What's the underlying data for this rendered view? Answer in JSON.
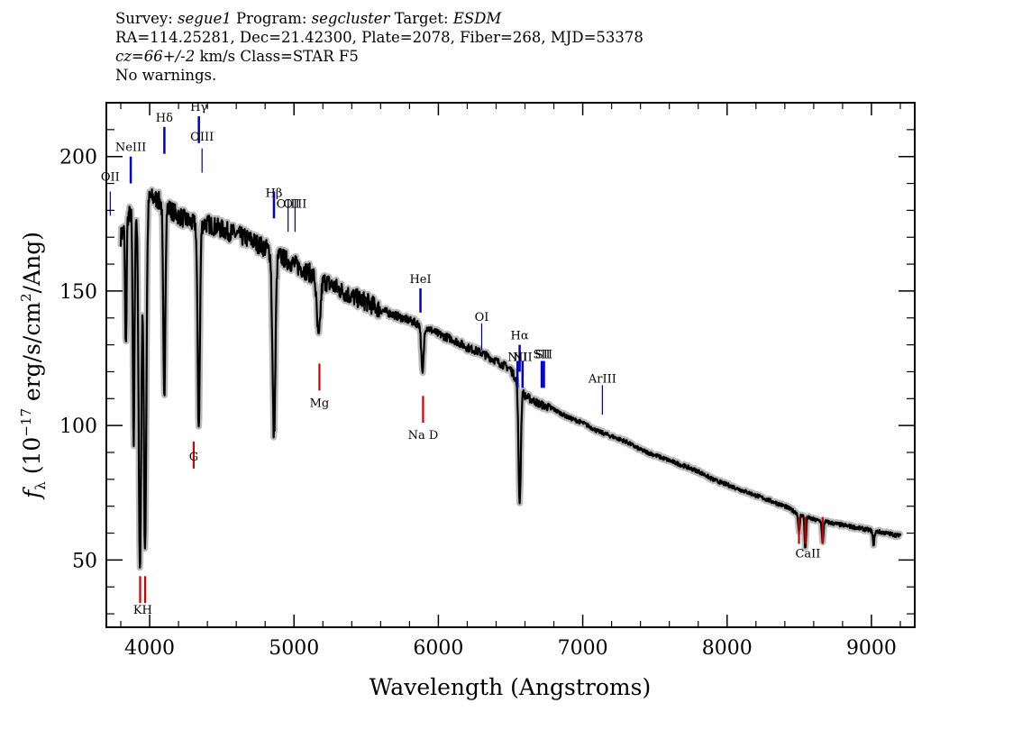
{
  "header": {
    "survey_label": "Survey:",
    "survey": "segue1",
    "program_label": "Program:",
    "program": "segcluster",
    "target_label": "Target:",
    "target": "ESDM",
    "line2": "RA=114.25281, Dec=21.42300, Plate=2078, Fiber=268, MJD=53378",
    "cz": "cz=66+/-2",
    "cz_rest": " km/s Class=STAR F5",
    "line4": "No warnings."
  },
  "chart_data": {
    "type": "line",
    "xlabel": "Wavelength (Angstroms)",
    "ylabel_prefix": "f",
    "ylabel_sub": "λ",
    "ylabel_main": " (10",
    "ylabel_exp": "−17",
    "ylabel_mid": " erg/s/cm",
    "ylabel_exp2": "2",
    "ylabel_end": "/Ang)",
    "xlim": [
      3700,
      9300
    ],
    "ylim": [
      25,
      220
    ],
    "x_ticks": [
      4000,
      5000,
      6000,
      7000,
      8000,
      9000
    ],
    "x_tick_labels": [
      "4000",
      "5000",
      "6000",
      "7000",
      "8000",
      "9000"
    ],
    "y_ticks": [
      50,
      100,
      150,
      200
    ],
    "y_tick_labels": [
      "50",
      "100",
      "150",
      "200"
    ],
    "colors": {
      "spectrum": "#000000",
      "error": "#bbbbbb",
      "emission": "#0000cc",
      "absorption": "#cc0000"
    },
    "continuum": [
      [
        3800,
        170
      ],
      [
        3850,
        178
      ],
      [
        3900,
        180
      ],
      [
        3950,
        182
      ],
      [
        4000,
        185
      ],
      [
        4050,
        184
      ],
      [
        4100,
        182
      ],
      [
        4200,
        178
      ],
      [
        4300,
        175
      ],
      [
        4400,
        175
      ],
      [
        4500,
        173
      ],
      [
        4600,
        171
      ],
      [
        4700,
        169
      ],
      [
        4800,
        166
      ],
      [
        4900,
        163
      ],
      [
        5000,
        160
      ],
      [
        5100,
        157
      ],
      [
        5200,
        154
      ],
      [
        5300,
        151
      ],
      [
        5400,
        148
      ],
      [
        5500,
        146
      ],
      [
        5600,
        143
      ],
      [
        5700,
        141
      ],
      [
        5800,
        139
      ],
      [
        5900,
        137
      ],
      [
        6000,
        134
      ],
      [
        6100,
        132
      ],
      [
        6200,
        129
      ],
      [
        6300,
        127
      ],
      [
        6400,
        124
      ],
      [
        6500,
        121
      ],
      [
        6600,
        111
      ],
      [
        6700,
        108
      ],
      [
        6800,
        106
      ],
      [
        6900,
        103
      ],
      [
        7000,
        101
      ],
      [
        7100,
        98
      ],
      [
        7200,
        96
      ],
      [
        7300,
        94
      ],
      [
        7400,
        91
      ],
      [
        7500,
        89
      ],
      [
        7600,
        87
      ],
      [
        7700,
        85
      ],
      [
        7800,
        83
      ],
      [
        7900,
        80
      ],
      [
        8000,
        78
      ],
      [
        8100,
        76
      ],
      [
        8200,
        74
      ],
      [
        8300,
        72
      ],
      [
        8400,
        70
      ],
      [
        8500,
        67
      ],
      [
        8600,
        65
      ],
      [
        8700,
        64
      ],
      [
        8800,
        63
      ],
      [
        8900,
        62
      ],
      [
        9000,
        61
      ],
      [
        9100,
        60
      ],
      [
        9200,
        59
      ]
    ],
    "absorption_features": [
      [
        3835,
        128,
        5
      ],
      [
        3889,
        92,
        6
      ],
      [
        3933,
        46,
        9
      ],
      [
        3968,
        55,
        9
      ],
      [
        4101,
        110,
        7
      ],
      [
        4340,
        100,
        8
      ],
      [
        4861,
        96,
        10
      ],
      [
        5170,
        132,
        12
      ],
      [
        5890,
        119,
        8
      ],
      [
        6563,
        72,
        8
      ],
      [
        8498,
        60,
        5
      ],
      [
        8542,
        54,
        5
      ],
      [
        8662,
        56,
        5
      ],
      [
        9015,
        56,
        6
      ]
    ],
    "emission_lines": [
      {
        "name": "OII",
        "x": 3727,
        "label_y": 191,
        "y0": 187,
        "y1": 178
      },
      {
        "name": "NeIII",
        "x": 3869,
        "label_y": 202,
        "y0": 200,
        "y1": 190
      },
      {
        "name": "Hδ",
        "x": 4102,
        "label_y": 213,
        "y0": 211,
        "y1": 201
      },
      {
        "name": "Hγ",
        "x": 4341,
        "label_y": 217,
        "y0": 215,
        "y1": 205
      },
      {
        "name": "OIII",
        "x": 4363,
        "label_y": 206,
        "y0": 203,
        "y1": 194
      },
      {
        "name": "Hβ",
        "x": 4861,
        "label_y": 185,
        "y0": 187,
        "y1": 177
      },
      {
        "name": "OIII",
        "x": 4959,
        "label_y": 181,
        "y0": 182,
        "y1": 172
      },
      {
        "name": "OIII",
        "x": 5007,
        "label_y": 181,
        "y0": 182,
        "y1": 172
      },
      {
        "name": "HeI",
        "x": 5876,
        "label_y": 153,
        "y0": 151,
        "y1": 142
      },
      {
        "name": "OI",
        "x": 6300,
        "label_y": 139,
        "y0": 138,
        "y1": 128
      },
      {
        "name": "NII",
        "x": 6548,
        "label_y": 124,
        "y0": 124,
        "y1": 114
      },
      {
        "name": "Hα",
        "x": 6563,
        "label_y": 132,
        "y0": 130,
        "y1": 120
      },
      {
        "name": "NII",
        "x": 6583,
        "label_y": 124,
        "y0": 124,
        "y1": 114
      },
      {
        "name": "SII",
        "x": 6716,
        "label_y": 125,
        "y0": 124,
        "y1": 114
      },
      {
        "name": "SII",
        "x": 6731,
        "label_y": 125,
        "y0": 124,
        "y1": 114
      },
      {
        "name": "ArIII",
        "x": 7136,
        "label_y": 116,
        "y0": 115,
        "y1": 104
      }
    ],
    "absorption_lines": [
      {
        "name": "K",
        "x": 3934,
        "label_y": 30,
        "y0": 44,
        "y1": 34
      },
      {
        "name": "H",
        "x": 3969,
        "label_y": 30,
        "y0": 44,
        "y1": 34
      },
      {
        "name": "G",
        "x": 4305,
        "label_y": 87,
        "y0": 94,
        "y1": 84
      },
      {
        "name": "Mg",
        "x": 5176,
        "label_y": 107,
        "y0": 123,
        "y1": 113
      },
      {
        "name": "Na D",
        "x": 5894,
        "label_y": 95,
        "y0": 111,
        "y1": 101
      },
      {
        "name": "CaII",
        "x": 8498,
        "label_y": 51,
        "y0": 66,
        "y1": 56
      },
      {
        "name": "CaII",
        "x": 8542,
        "label_y": 51,
        "y0": 66,
        "y1": 56
      },
      {
        "name": "CaII",
        "x": 8662,
        "label_y": 51,
        "y0": 66,
        "y1": 56
      }
    ],
    "label_names": {
      "na_d": "Na D",
      "kh": "KH",
      "caii": "CaII"
    }
  }
}
